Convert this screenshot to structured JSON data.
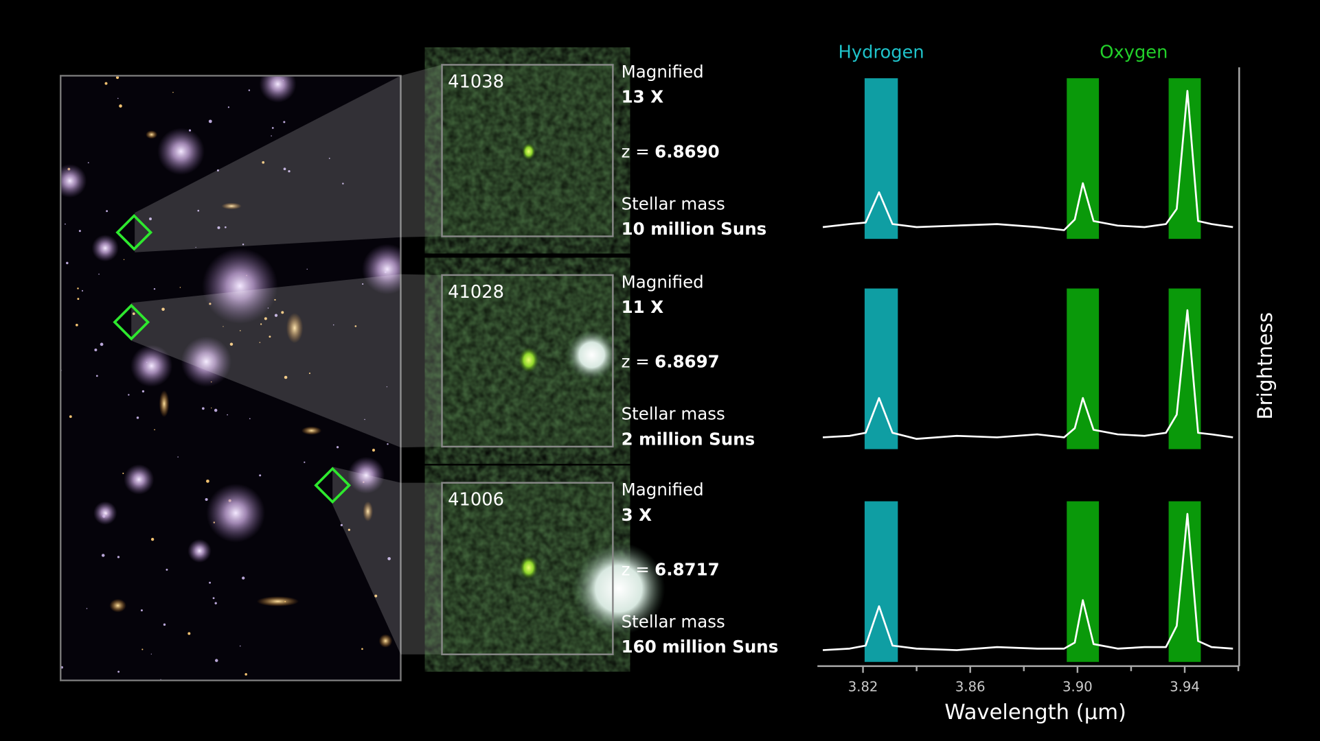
{
  "galaxies": [
    {
      "id": "41038",
      "magnified_label": "Magnified",
      "magnification": "13 X",
      "z_label": "z =",
      "z": "6.8690",
      "mass_label": "Stellar mass",
      "mass": "10 million Suns"
    },
    {
      "id": "41028",
      "magnified_label": "Magnified",
      "magnification": "11 X",
      "z_label": "z =",
      "z": "6.8697",
      "mass_label": "Stellar mass",
      "mass": "2 million Suns"
    },
    {
      "id": "41006",
      "magnified_label": "Magnified",
      "magnification": "3 X",
      "z_label": "z =",
      "z": "6.8717",
      "mass_label": "Stellar mass",
      "mass": "160 million Suns"
    }
  ],
  "chart_data": {
    "type": "line",
    "xlabel": "Wavelength (µm)",
    "ylabel": "Brightness",
    "xlim": [
      3.803,
      3.96
    ],
    "ylim": [
      -0.1,
      1
    ],
    "xticks": [
      3.82,
      3.86,
      {
        "value": 3.9,
        "label": "3.90"
      },
      3.94
    ],
    "xminorticks": [
      3.84,
      3.88,
      3.92,
      3.96
    ],
    "bands": [
      {
        "name": "Hydrogen",
        "color": "#0f9ea3",
        "label_color": "#1fc2c9",
        "ranges": [
          [
            3.8206,
            3.833
          ]
        ]
      },
      {
        "name": "Oxygen",
        "color": "#0a990a",
        "label_color": "#22d02a",
        "ranges": [
          [
            3.896,
            3.908
          ],
          [
            3.934,
            3.946
          ]
        ]
      }
    ],
    "x": [
      3.805,
      3.815,
      3.821,
      3.826,
      3.831,
      3.84,
      3.855,
      3.87,
      3.885,
      3.895,
      3.899,
      3.902,
      3.906,
      3.915,
      3.925,
      3.933,
      3.937,
      3.941,
      3.945,
      3.95,
      3.958
    ],
    "series": [
      {
        "color": "#ffffff",
        "values": [
          0,
          0.02,
          0.03,
          0.23,
          0.02,
          0,
          0.01,
          0.02,
          0,
          -0.02,
          0.05,
          0.29,
          0.04,
          0.01,
          0,
          0.02,
          0.12,
          0.9,
          0.04,
          0.02,
          0
        ]
      },
      {
        "color": "#ffffff",
        "values": [
          0,
          0.01,
          0.03,
          0.26,
          0.03,
          -0.01,
          0.01,
          0,
          0.02,
          0,
          0.06,
          0.26,
          0.05,
          0.02,
          0.01,
          0.03,
          0.15,
          0.84,
          0.03,
          0.02,
          0
        ]
      },
      {
        "color": "#ffffff",
        "values": [
          0,
          0.01,
          0.03,
          0.29,
          0.03,
          0.01,
          0,
          0.02,
          0.01,
          0.01,
          0.05,
          0.33,
          0.04,
          0.01,
          0.02,
          0.02,
          0.16,
          0.9,
          0.06,
          0.02,
          0.01
        ]
      }
    ]
  }
}
